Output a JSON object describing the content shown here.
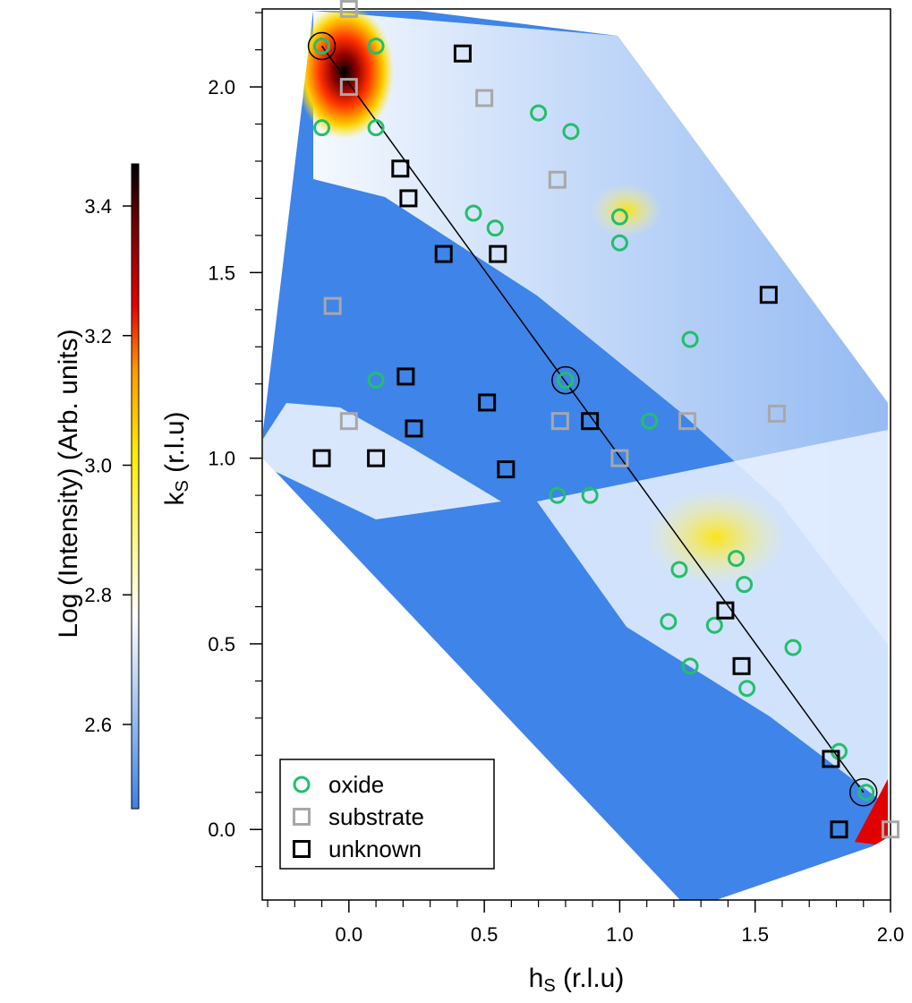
{
  "chart_data": {
    "type": "scatter",
    "xlabel": [
      "h",
      "S",
      " (r.l.u)"
    ],
    "ylabel": [
      "k",
      "S",
      " (r.l.u)"
    ],
    "xlim": [
      -0.32,
      2.0
    ],
    "ylim": [
      -0.19,
      2.21
    ],
    "xticks": [
      {
        "value": 0,
        "label": "0.0"
      },
      0.5,
      {
        "value": 1,
        "label": "1.0"
      },
      1.5,
      {
        "value": 2,
        "label": "2.0"
      }
    ],
    "yticks": [
      {
        "value": 0,
        "label": "0.0"
      },
      0.5,
      {
        "value": 1,
        "label": "1.0"
      },
      1.5,
      {
        "value": 2,
        "label": "2.0"
      }
    ],
    "xminorticks": [
      -0.3,
      -0.2,
      -0.1,
      0.1,
      0.2,
      0.3,
      0.4,
      0.6,
      0.7,
      0.8,
      0.9,
      1.1,
      1.2,
      1.3,
      1.4,
      1.6,
      1.7,
      1.8,
      1.9
    ],
    "yminorticks": [
      -0.1,
      0.1,
      0.2,
      0.3,
      0.4,
      0.6,
      0.7,
      0.8,
      0.9,
      1.1,
      1.2,
      1.3,
      1.4,
      1.6,
      1.7,
      1.8,
      1.9,
      2.1,
      2.2
    ],
    "colorbar": {
      "label": "Log (Intensity) (Arb. units)",
      "lim": [
        2.47,
        3.465
      ],
      "ticks": [
        2.6,
        2.8,
        {
          "value": 3,
          "label": "3.0"
        },
        3.2,
        3.4
      ]
    },
    "series": [
      {
        "name": "oxide",
        "marker": "circle",
        "color": "#22bf6a",
        "x": [
          -0.1,
          0.1,
          -0.1,
          0.1,
          0.7,
          0.82,
          0.46,
          0.54,
          1.0,
          1.0,
          0.1,
          0.8,
          1.26,
          1.11,
          0.77,
          0.89,
          1.22,
          1.43,
          1.46,
          1.18,
          1.35,
          1.64,
          1.26,
          1.47,
          1.81,
          1.91
        ],
        "y": [
          2.11,
          2.11,
          1.89,
          1.89,
          1.93,
          1.88,
          1.66,
          1.62,
          1.65,
          1.58,
          1.21,
          1.21,
          1.32,
          1.1,
          0.9,
          0.9,
          0.7,
          0.73,
          0.66,
          0.56,
          0.55,
          0.49,
          0.44,
          0.38,
          0.21,
          0.1
        ]
      },
      {
        "name": "substrate",
        "marker": "square",
        "color": "#a8a8a8",
        "x": [
          0,
          0.5,
          0.77,
          -0.06,
          0,
          0.78,
          1.25,
          1.58,
          0,
          1.0,
          2.0
        ],
        "y": [
          2.21,
          1.97,
          1.75,
          1.41,
          1.1,
          1.1,
          1.1,
          1.12,
          2.0,
          1.0,
          0.0
        ]
      },
      {
        "name": "unknown",
        "marker": "square",
        "color": "#000000",
        "x": [
          0.42,
          0.19,
          0.22,
          0.35,
          0.55,
          1.55,
          0.21,
          0.51,
          0.24,
          0.89,
          -0.1,
          0.1,
          0.58,
          1.39,
          1.45,
          1.78,
          1.81
        ],
        "y": [
          2.09,
          1.78,
          1.7,
          1.55,
          1.55,
          1.44,
          1.22,
          1.15,
          1.08,
          1.1,
          1.0,
          1.0,
          0.97,
          0.59,
          0.44,
          0.19,
          0.0
        ]
      }
    ],
    "guide_line": {
      "x": [
        -0.1,
        1.9
      ],
      "y": [
        2.11,
        0.1
      ]
    },
    "circled": {
      "x": [
        -0.1,
        0.8,
        1.9
      ],
      "y": [
        2.11,
        1.21,
        0.1
      ]
    },
    "legend": "lower left"
  }
}
